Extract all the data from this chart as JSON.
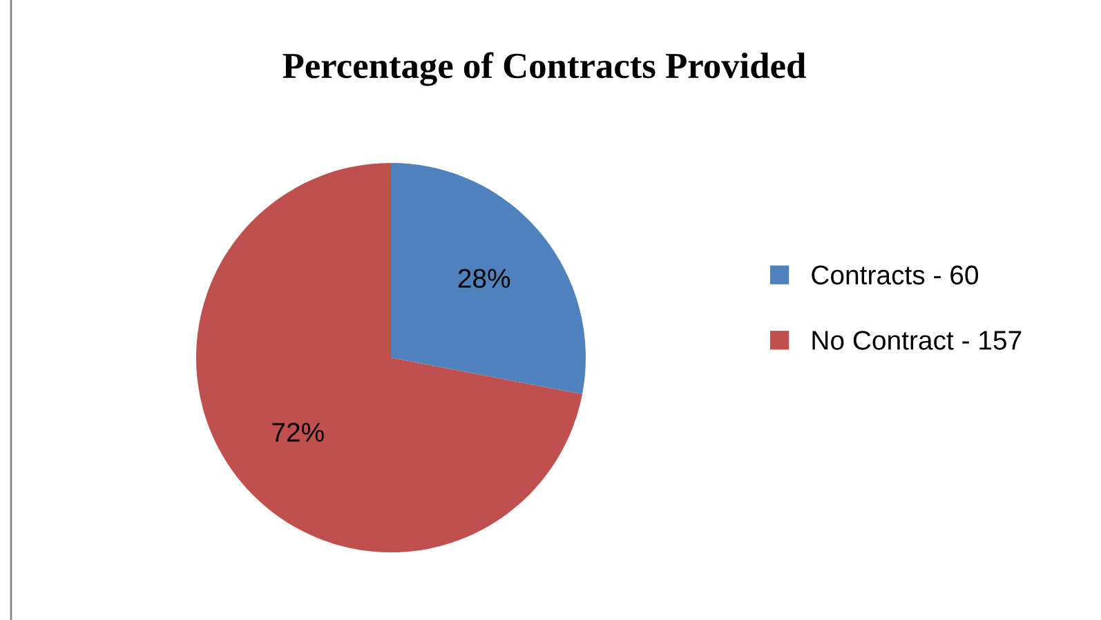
{
  "chart_data": {
    "type": "pie",
    "title": "Percentage of Contracts Provided",
    "categories": [
      "Contracts - 60",
      "No Contract - 157"
    ],
    "values": [
      28,
      72
    ],
    "colors": [
      "#4f81bd",
      "#c0504d"
    ],
    "value_labels": [
      "28%",
      "72%"
    ],
    "legend": "right"
  }
}
